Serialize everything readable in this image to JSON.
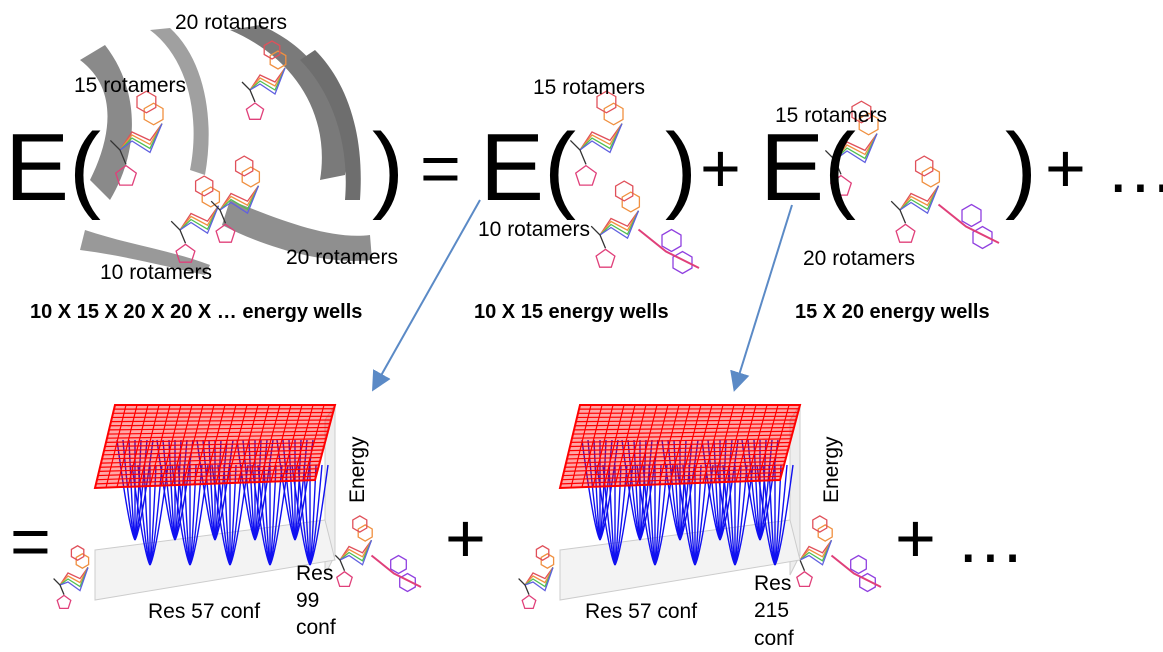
{
  "top": {
    "lhs": {
      "open": "E(",
      "close": ")",
      "labels": [
        "20 rotamers",
        "15 rotamers",
        "10 rotamers",
        "20 rotamers"
      ],
      "caption": "10 X 15 X 20 X 20 X … energy wells"
    },
    "eq": "=",
    "term1": {
      "open": "E(",
      "close": ")",
      "labels": [
        "15 rotamers",
        "10 rotamers"
      ],
      "caption": "10 X 15 energy wells"
    },
    "plus": "+",
    "term2": {
      "open": "E(",
      "close": ")",
      "labels": [
        "15 rotamers",
        "20 rotamers"
      ],
      "caption": "15 X 20 energy wells"
    },
    "tail": "+ …"
  },
  "bottom": {
    "eq": "=",
    "plot1": {
      "z_label": "Energy",
      "x_label": "Res 57 conf",
      "y_label": [
        "Res",
        "99",
        "conf"
      ]
    },
    "plus": "+",
    "plot2": {
      "z_label": "Energy",
      "x_label": "Res 57 conf",
      "y_label": [
        "Res",
        "215",
        "conf"
      ]
    },
    "tail": "+ …"
  }
}
